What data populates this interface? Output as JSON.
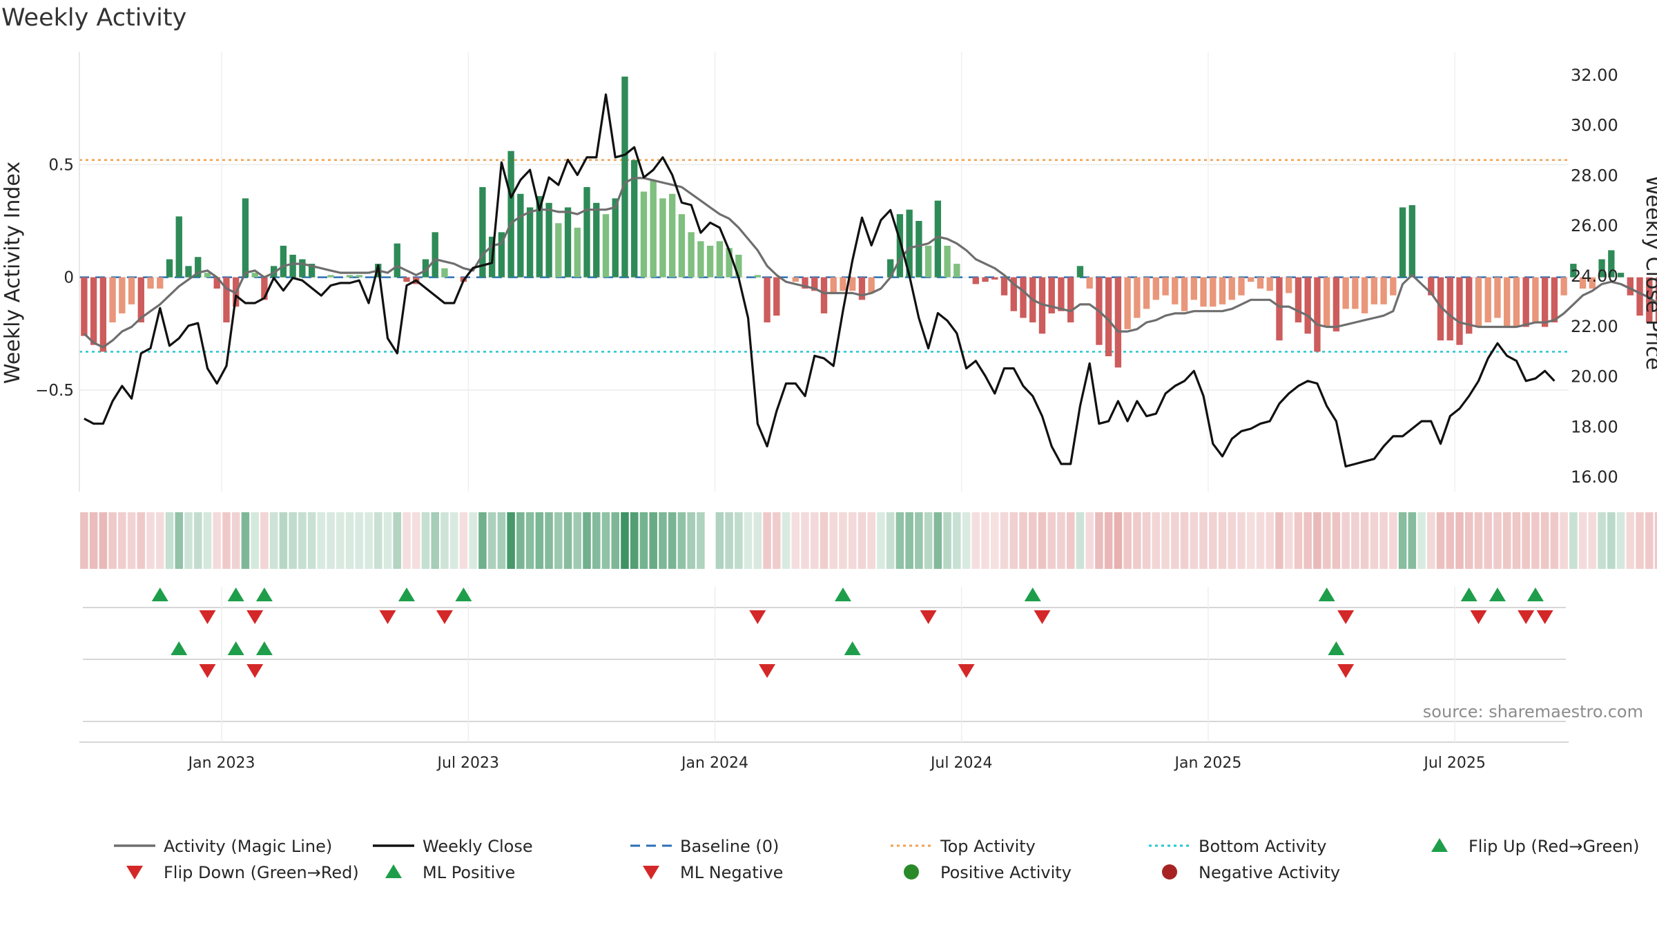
{
  "chart_data": {
    "type": "bar",
    "title": "Weekly Activity",
    "ylabel": "Weekly Activity Index",
    "y2label": "Weekly Close Price",
    "source": "source: sharemaestro.com",
    "ylim": [
      -0.95,
      1.0
    ],
    "y2lim": [
      15.4,
      32.9
    ],
    "yticks": [
      {
        "value": 0.5,
        "label": "0.5"
      },
      {
        "value": 0,
        "label": "0"
      },
      {
        "value": -0.5,
        "label": "−0.5"
      }
    ],
    "y2ticks": [
      "16.00",
      "18.00",
      "20.00",
      "22.00",
      "24.00",
      "26.00",
      "28.00",
      "30.00",
      "32.00"
    ],
    "xlim": [
      0,
      157
    ],
    "x_ticks": [
      {
        "week": 15,
        "label": "Jan 2023"
      },
      {
        "week": 41,
        "label": "Jul 2023"
      },
      {
        "week": 67,
        "label": "Jan 2024"
      },
      {
        "week": 93,
        "label": "Jul 2024"
      },
      {
        "week": 119,
        "label": "Jan 2025"
      },
      {
        "week": 145,
        "label": "Jul 2025"
      }
    ],
    "top_activity": 0.52,
    "bottom_activity": -0.33,
    "grid": true,
    "colors": {
      "pos_strong": "#2e8b57",
      "pos_weak": "#7fbf7f",
      "neg_strong": "#cd5c5c",
      "neg_weak": "#e9967a",
      "magic_line": "#6e6e6e",
      "close": "#111111",
      "baseline": "#2a6fb5",
      "top": "#f0a050",
      "bottom": "#22c6d0",
      "flip_up": "#1e9e4a",
      "flip_down": "#d42828",
      "pos_dot": "#2a8a2a",
      "neg_dot": "#a82222"
    },
    "activity": [
      -0.26,
      -0.3,
      -0.33,
      -0.2,
      -0.16,
      -0.12,
      -0.2,
      -0.05,
      -0.05,
      0.08,
      0.27,
      0.05,
      0.09,
      0.02,
      -0.05,
      -0.2,
      -0.13,
      0.35,
      0.02,
      -0.1,
      0.05,
      0.14,
      0.1,
      0.08,
      0.06,
      0.0,
      0.01,
      0.0,
      0.01,
      0.01,
      0.0,
      0.06,
      0.0,
      0.15,
      -0.02,
      -0.03,
      0.08,
      0.2,
      0.04,
      0.0,
      -0.02,
      0.0,
      0.4,
      0.18,
      0.2,
      0.56,
      0.37,
      0.31,
      0.36,
      0.33,
      0.24,
      0.31,
      0.22,
      0.4,
      0.33,
      0.28,
      0.35,
      0.89,
      0.52,
      0.38,
      0.43,
      0.35,
      0.37,
      0.28,
      0.2,
      0.16,
      0.14,
      0.16,
      0.13,
      0.1,
      0.0,
      0.01,
      -0.2,
      -0.17,
      0.0,
      -0.02,
      -0.05,
      -0.06,
      -0.16,
      -0.07,
      -0.06,
      -0.06,
      -0.1,
      -0.07,
      0.0,
      0.08,
      0.28,
      0.3,
      0.25,
      0.14,
      0.34,
      0.14,
      0.06,
      0.0,
      -0.03,
      -0.02,
      -0.01,
      -0.08,
      -0.15,
      -0.18,
      -0.2,
      -0.25,
      -0.16,
      -0.15,
      -0.2,
      0.05,
      -0.05,
      -0.3,
      -0.35,
      -0.4,
      -0.23,
      -0.18,
      -0.14,
      -0.1,
      -0.08,
      -0.12,
      -0.15,
      -0.1,
      -0.13,
      -0.13,
      -0.12,
      -0.1,
      -0.08,
      -0.02,
      -0.05,
      -0.06,
      -0.28,
      -0.07,
      -0.2,
      -0.25,
      -0.33,
      -0.22,
      -0.24,
      -0.14,
      -0.14,
      -0.16,
      -0.12,
      -0.12,
      -0.08,
      0.31,
      0.32,
      0.0,
      -0.08,
      -0.28,
      -0.28,
      -0.3,
      -0.25,
      -0.22,
      -0.2,
      -0.18,
      -0.22,
      -0.22,
      -0.22,
      -0.2,
      -0.22,
      -0.2,
      -0.08,
      0.06,
      -0.05,
      -0.05,
      0.08,
      0.12,
      0.02,
      -0.08,
      -0.17,
      -0.2,
      -0.2,
      -0.22
    ],
    "magic_line": [
      -0.25,
      -0.29,
      -0.31,
      -0.28,
      -0.24,
      -0.22,
      -0.18,
      -0.15,
      -0.12,
      -0.08,
      -0.04,
      -0.01,
      0.02,
      0.03,
      0.0,
      -0.05,
      -0.07,
      0.02,
      0.03,
      0.0,
      0.02,
      0.05,
      0.06,
      0.06,
      0.05,
      0.04,
      0.03,
      0.02,
      0.02,
      0.02,
      0.02,
      0.03,
      0.02,
      0.05,
      0.03,
      0.01,
      0.03,
      0.08,
      0.07,
      0.06,
      0.04,
      0.03,
      0.1,
      0.14,
      0.15,
      0.24,
      0.27,
      0.29,
      0.3,
      0.3,
      0.29,
      0.29,
      0.28,
      0.3,
      0.3,
      0.3,
      0.31,
      0.42,
      0.44,
      0.44,
      0.43,
      0.42,
      0.41,
      0.4,
      0.37,
      0.34,
      0.31,
      0.28,
      0.26,
      0.22,
      0.17,
      0.12,
      0.05,
      0.01,
      -0.02,
      -0.03,
      -0.04,
      -0.05,
      -0.07,
      -0.07,
      -0.07,
      -0.07,
      -0.08,
      -0.07,
      -0.05,
      0.0,
      0.08,
      0.13,
      0.14,
      0.15,
      0.18,
      0.17,
      0.15,
      0.12,
      0.08,
      0.06,
      0.04,
      0.01,
      -0.03,
      -0.06,
      -0.1,
      -0.12,
      -0.13,
      -0.14,
      -0.15,
      -0.12,
      -0.12,
      -0.15,
      -0.19,
      -0.24,
      -0.24,
      -0.23,
      -0.2,
      -0.19,
      -0.17,
      -0.16,
      -0.16,
      -0.15,
      -0.15,
      -0.15,
      -0.15,
      -0.14,
      -0.12,
      -0.1,
      -0.1,
      -0.1,
      -0.13,
      -0.13,
      -0.15,
      -0.17,
      -0.21,
      -0.22,
      -0.22,
      -0.21,
      -0.2,
      -0.19,
      -0.18,
      -0.17,
      -0.15,
      -0.03,
      0.01,
      -0.03,
      -0.07,
      -0.13,
      -0.17,
      -0.2,
      -0.21,
      -0.22,
      -0.22,
      -0.22,
      -0.22,
      -0.22,
      -0.21,
      -0.2,
      -0.2,
      -0.19,
      -0.16,
      -0.12,
      -0.08,
      -0.06,
      -0.03,
      -0.02,
      -0.03,
      -0.05,
      -0.07,
      -0.09,
      -0.12,
      -0.13
    ]
  },
  "ribbon_gap_index": 66,
  "flip_up_weeks": [
    8,
    16,
    19,
    34,
    40,
    80,
    100,
    131,
    146,
    149,
    153
  ],
  "flip_down_weeks": [
    13,
    18,
    32,
    38,
    71,
    89,
    101,
    133,
    147,
    152,
    154
  ],
  "ml_positive_weeks": [
    10,
    16,
    19,
    81,
    132
  ],
  "ml_negative_weeks": [
    13,
    18,
    72,
    93,
    133
  ],
  "close_prices": [
    18.3,
    18.1,
    18.1,
    19.0,
    19.6,
    19.1,
    20.9,
    21.1,
    22.7,
    21.2,
    21.5,
    22.0,
    22.1,
    20.3,
    19.7,
    20.4,
    23.2,
    22.9,
    22.9,
    23.1,
    23.9,
    23.4,
    23.9,
    23.8,
    23.5,
    23.2,
    23.6,
    23.7,
    23.7,
    23.8,
    22.9,
    24.4,
    21.5,
    20.9,
    23.6,
    23.8,
    23.5,
    23.2,
    22.9,
    22.9,
    23.8,
    24.3,
    24.4,
    24.5,
    28.5,
    27.1,
    27.8,
    28.2,
    26.6,
    27.9,
    27.6,
    28.6,
    28.0,
    28.7,
    28.7,
    31.2,
    28.7,
    28.8,
    29.1,
    27.9,
    28.2,
    28.7,
    28.0,
    26.9,
    26.8,
    25.7,
    26.1,
    25.9,
    25.0,
    23.9,
    22.3,
    18.1,
    17.2,
    18.6,
    19.7,
    19.7,
    19.2,
    20.8,
    20.7,
    20.4,
    22.6,
    24.6,
    26.3,
    25.2,
    26.2,
    26.6,
    25.4,
    24.0,
    22.3,
    21.1,
    22.5,
    22.2,
    21.7,
    20.3,
    20.6,
    20.0,
    19.3,
    20.3,
    20.3,
    19.6,
    19.2,
    18.4,
    17.2,
    16.5,
    16.5,
    18.8,
    20.5,
    18.1,
    18.2,
    19.0,
    18.2,
    19.0,
    18.4,
    18.5,
    19.3,
    19.6,
    19.8,
    20.2,
    19.2,
    17.3,
    16.8,
    17.5,
    17.8,
    17.9,
    18.1,
    18.2,
    18.9,
    19.3,
    19.6,
    19.8,
    19.7,
    18.8,
    18.2,
    16.4,
    16.5,
    16.6,
    16.7,
    17.2,
    17.6,
    17.6,
    17.9,
    18.2,
    18.2,
    17.3,
    18.4,
    18.7,
    19.2,
    19.8,
    20.7,
    21.3,
    20.8,
    20.6,
    19.8,
    19.9,
    20.2,
    19.8
  ],
  "legend": [
    "Activity (Magic Line)",
    "Weekly Close",
    "Baseline (0)",
    "Top Activity",
    "Bottom Activity",
    "Flip Up (Red→Green)",
    "Flip Down (Green→Red)",
    "ML Positive",
    "ML Negative",
    "Positive Activity",
    "Negative Activity"
  ]
}
